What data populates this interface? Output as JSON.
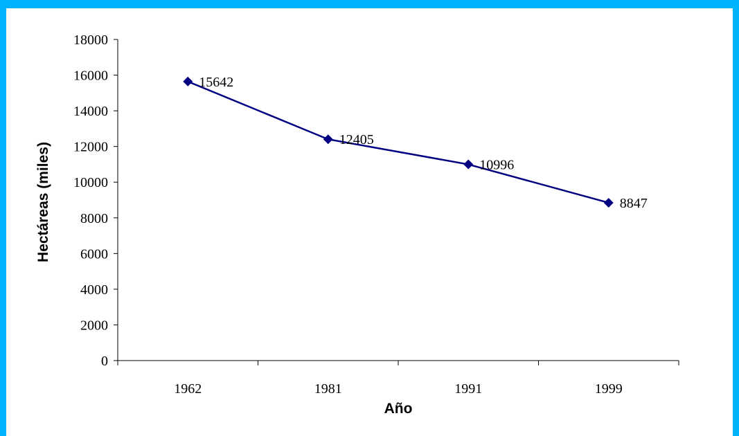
{
  "colors": {
    "page_border": "#00B3FF",
    "background": "#FFFFFF",
    "series_line": "#000080"
  },
  "chart_data": {
    "type": "line",
    "categories": [
      "1962",
      "1981",
      "1991",
      "1999"
    ],
    "series": [
      {
        "values": [
          15642,
          12405,
          10996,
          8847
        ],
        "marker": "diamond",
        "data_labels": true
      }
    ],
    "xlabel": "Año",
    "ylabel": "Hectáreas (miles)",
    "ylim": [
      0,
      18000
    ],
    "yticks": [
      0,
      2000,
      4000,
      6000,
      8000,
      10000,
      12000,
      14000,
      16000,
      18000
    ],
    "grid": false,
    "legend": "none"
  }
}
